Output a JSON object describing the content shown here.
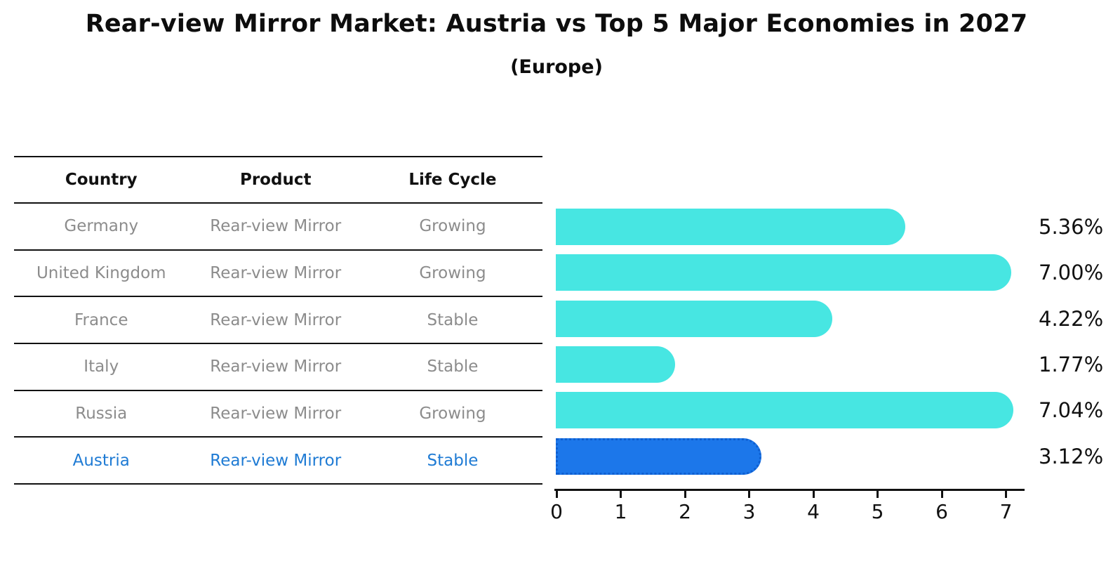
{
  "title": "Rear-view Mirror Market: Austria vs Top 5 Major Economies in 2027",
  "subtitle": "(Europe)",
  "colors": {
    "bar_default": "#47e6e2",
    "bar_highlight": "#1c77ea",
    "bar_highlight_border": "#0f5fd0",
    "highlight_text": "#1f7bd4",
    "table_text": "#8c8c8c",
    "line": "#111111"
  },
  "table": {
    "headers": [
      "Country",
      "Product",
      "Life Cycle"
    ],
    "rows": [
      {
        "country": "Germany",
        "product": "Rear-view Mirror",
        "life_cycle": "Growing",
        "highlighted": false
      },
      {
        "country": "United Kingdom",
        "product": "Rear-view Mirror",
        "life_cycle": "Growing",
        "highlighted": false
      },
      {
        "country": "France",
        "product": "Rear-view Mirror",
        "life_cycle": "Stable",
        "highlighted": false
      },
      {
        "country": "Italy",
        "product": "Rear-view Mirror",
        "life_cycle": "Stable",
        "highlighted": false
      },
      {
        "country": "Russia",
        "product": "Rear-view Mirror",
        "life_cycle": "Growing",
        "highlighted": false
      },
      {
        "country": "Austria",
        "product": "Rear-view Mirror",
        "life_cycle": "Stable",
        "highlighted": true
      }
    ]
  },
  "chart_data": {
    "type": "bar",
    "orientation": "horizontal",
    "title": "Rear-view Mirror Market: Austria vs Top 5 Major Economies in 2027",
    "subtitle": "(Europe)",
    "categories": [
      "Germany",
      "United Kingdom",
      "France",
      "Italy",
      "Russia",
      "Austria"
    ],
    "values": [
      5.36,
      7.0,
      4.22,
      1.77,
      7.04,
      3.12
    ],
    "value_labels": [
      "5.36%",
      "7.00%",
      "4.22%",
      "1.77%",
      "7.04%",
      "3.12%"
    ],
    "highlight_index": 5,
    "x_ticks": [
      0,
      1,
      2,
      3,
      4,
      5,
      6,
      7
    ],
    "xlim": [
      0,
      7.3
    ],
    "xlabel": "",
    "ylabel": "",
    "grid": false,
    "legend": false
  }
}
